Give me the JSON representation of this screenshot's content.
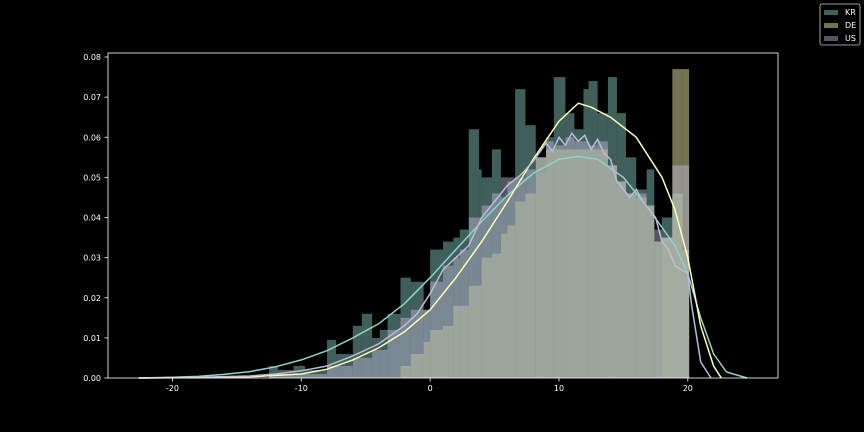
{
  "chart_data": {
    "type": "bar",
    "title": "",
    "xlabel": "",
    "ylabel": "",
    "xlim": [
      -25,
      27
    ],
    "ylim": [
      0,
      0.081
    ],
    "x_ticks": [
      -20,
      -10,
      0,
      10,
      20
    ],
    "y_ticks": [
      0.0,
      0.01,
      0.02,
      0.03,
      0.04,
      0.05,
      0.06,
      0.07,
      0.08
    ],
    "x_tick_labels": [
      "-20",
      "-10",
      "0",
      "10",
      "20"
    ],
    "y_tick_labels": [
      "0.00",
      "0.01",
      "0.02",
      "0.03",
      "0.04",
      "0.05",
      "0.06",
      "0.07",
      "0.08"
    ],
    "legend_position": "top-right",
    "series": [
      {
        "name": "KR",
        "color": "#8dd3c7",
        "hist": [
          [
            -12.5,
            -11.8,
            0.003
          ],
          [
            -11.8,
            -10.6,
            0.002
          ],
          [
            -10.6,
            -9.7,
            0.003
          ],
          [
            -9.7,
            -8.0,
            0.002
          ],
          [
            -8.0,
            -7.3,
            0.0095
          ],
          [
            -7.3,
            -6.0,
            0.006
          ],
          [
            -6.0,
            -5.3,
            0.013
          ],
          [
            -5.3,
            -4.5,
            0.016
          ],
          [
            -4.5,
            -3.9,
            0.01
          ],
          [
            -3.9,
            -3.3,
            0.012
          ],
          [
            -3.3,
            -2.3,
            0.016
          ],
          [
            -2.3,
            -1.5,
            0.025
          ],
          [
            -1.5,
            -0.5,
            0.024
          ],
          [
            -0.5,
            0.0,
            0.017
          ],
          [
            0.0,
            1.0,
            0.032
          ],
          [
            1.0,
            1.8,
            0.034
          ],
          [
            1.8,
            2.3,
            0.035
          ],
          [
            2.3,
            3.0,
            0.037
          ],
          [
            3.0,
            3.8,
            0.062
          ],
          [
            3.8,
            4.0,
            0.052
          ],
          [
            4.0,
            4.8,
            0.05
          ],
          [
            4.8,
            5.5,
            0.057
          ],
          [
            5.5,
            6.0,
            0.045
          ],
          [
            6.0,
            6.6,
            0.049
          ],
          [
            6.6,
            7.4,
            0.072
          ],
          [
            7.4,
            8.2,
            0.063
          ],
          [
            8.2,
            9.0,
            0.051
          ],
          [
            9.0,
            9.6,
            0.06
          ],
          [
            9.6,
            10.5,
            0.075
          ],
          [
            10.5,
            11.2,
            0.066
          ],
          [
            11.2,
            11.9,
            0.062
          ],
          [
            11.9,
            12.3,
            0.072
          ],
          [
            12.3,
            13.0,
            0.074
          ],
          [
            13.0,
            13.8,
            0.066
          ],
          [
            13.8,
            14.5,
            0.075
          ],
          [
            14.5,
            15.2,
            0.066
          ],
          [
            15.2,
            16.0,
            0.055
          ],
          [
            16.0,
            16.8,
            0.047
          ],
          [
            16.8,
            17.4,
            0.052
          ],
          [
            17.4,
            18.0,
            0.034
          ],
          [
            18.0,
            18.8,
            0.04
          ],
          [
            18.8,
            19.6,
            0.046
          ],
          [
            19.6,
            20.1,
            0.032
          ]
        ],
        "kde": [
          [
            -22.6,
            0.0
          ],
          [
            -20,
            0.0002
          ],
          [
            -18,
            0.0004
          ],
          [
            -16,
            0.0009
          ],
          [
            -14,
            0.0016
          ],
          [
            -12,
            0.0028
          ],
          [
            -10,
            0.0045
          ],
          [
            -8,
            0.0068
          ],
          [
            -6,
            0.01
          ],
          [
            -4,
            0.0135
          ],
          [
            -2,
            0.0185
          ],
          [
            0,
            0.025
          ],
          [
            2,
            0.032
          ],
          [
            4,
            0.039
          ],
          [
            6,
            0.0455
          ],
          [
            8,
            0.051
          ],
          [
            10,
            0.0545
          ],
          [
            11.5,
            0.0552
          ],
          [
            13,
            0.0545
          ],
          [
            15,
            0.05
          ],
          [
            17,
            0.042
          ],
          [
            19,
            0.033
          ],
          [
            20,
            0.026
          ],
          [
            21,
            0.015
          ],
          [
            22,
            0.006
          ],
          [
            23,
            0.0015
          ],
          [
            24.6,
            0.0
          ]
        ]
      },
      {
        "name": "DE",
        "color": "#ffffb3",
        "hist": [
          [
            18.0,
            18.8,
            0.035
          ],
          [
            18.8,
            19.6,
            0.077
          ],
          [
            19.6,
            20.1,
            0.077
          ]
        ],
        "kde": [
          [
            -22.6,
            0.0
          ],
          [
            -18,
            0.0001
          ],
          [
            -14,
            0.0003
          ],
          [
            -10,
            0.001
          ],
          [
            -8,
            0.0022
          ],
          [
            -6,
            0.0045
          ],
          [
            -4,
            0.0075
          ],
          [
            -2,
            0.0115
          ],
          [
            0,
            0.017
          ],
          [
            2,
            0.025
          ],
          [
            4,
            0.034
          ],
          [
            6,
            0.044
          ],
          [
            8,
            0.0545
          ],
          [
            10,
            0.064
          ],
          [
            11.5,
            0.0685
          ],
          [
            12.5,
            0.0675
          ],
          [
            14,
            0.065
          ],
          [
            16,
            0.06
          ],
          [
            18,
            0.05
          ],
          [
            19,
            0.042
          ],
          [
            20,
            0.03
          ],
          [
            21,
            0.013
          ],
          [
            22,
            0.003
          ],
          [
            22.6,
            0.0
          ]
        ]
      },
      {
        "name": "US",
        "color": "#bebada",
        "hist": [
          [
            -12.5,
            -8.0,
            0.001
          ],
          [
            -8.0,
            -6.0,
            0.003
          ],
          [
            -6.0,
            -4.5,
            0.005
          ],
          [
            -4.5,
            -3.3,
            0.007
          ],
          [
            -3.3,
            -2.3,
            0.012
          ],
          [
            -2.3,
            -1.5,
            0.015
          ],
          [
            -1.5,
            -0.5,
            0.017
          ],
          [
            -0.5,
            0.0,
            0.017
          ],
          [
            0.0,
            1.0,
            0.024
          ],
          [
            1.0,
            1.8,
            0.028
          ],
          [
            1.8,
            2.3,
            0.03
          ],
          [
            2.3,
            3.0,
            0.032
          ],
          [
            3.0,
            4.0,
            0.04
          ],
          [
            4.0,
            4.8,
            0.043
          ],
          [
            4.8,
            5.5,
            0.046
          ],
          [
            5.5,
            6.6,
            0.05
          ],
          [
            6.6,
            7.4,
            0.05
          ],
          [
            7.4,
            8.2,
            0.052
          ],
          [
            8.2,
            9.0,
            0.055
          ],
          [
            9.0,
            9.6,
            0.059
          ],
          [
            9.6,
            10.5,
            0.058
          ],
          [
            10.5,
            11.2,
            0.06
          ],
          [
            11.2,
            12.3,
            0.059
          ],
          [
            12.3,
            13.0,
            0.058
          ],
          [
            13.0,
            13.8,
            0.059
          ],
          [
            13.8,
            14.5,
            0.053
          ],
          [
            14.5,
            15.2,
            0.049
          ],
          [
            15.2,
            16.0,
            0.046
          ],
          [
            16.0,
            16.8,
            0.046
          ],
          [
            16.8,
            17.4,
            0.043
          ],
          [
            17.4,
            18.0,
            0.037
          ],
          [
            18.0,
            18.8,
            0.035
          ],
          [
            18.8,
            19.6,
            0.053
          ],
          [
            19.6,
            20.1,
            0.053
          ]
        ],
        "kde": [
          [
            -22.6,
            0.0
          ],
          [
            -18,
            0.0002
          ],
          [
            -14,
            0.0005
          ],
          [
            -12,
            0.001
          ],
          [
            -10,
            0.0018
          ],
          [
            -8,
            0.003
          ],
          [
            -6,
            0.0055
          ],
          [
            -4,
            0.0085
          ],
          [
            -2,
            0.013
          ],
          [
            -1,
            0.016
          ],
          [
            0,
            0.021
          ],
          [
            1,
            0.027
          ],
          [
            2,
            0.03
          ],
          [
            3,
            0.033
          ],
          [
            4,
            0.04
          ],
          [
            5,
            0.044
          ],
          [
            6,
            0.048
          ],
          [
            7,
            0.0505
          ],
          [
            8,
            0.054
          ],
          [
            9,
            0.0585
          ],
          [
            9.5,
            0.0565
          ],
          [
            10,
            0.06
          ],
          [
            10.5,
            0.058
          ],
          [
            11,
            0.061
          ],
          [
            11.5,
            0.059
          ],
          [
            12,
            0.0605
          ],
          [
            12.5,
            0.057
          ],
          [
            13,
            0.0595
          ],
          [
            13.5,
            0.056
          ],
          [
            14,
            0.0545
          ],
          [
            14.5,
            0.049
          ],
          [
            15,
            0.047
          ],
          [
            15.5,
            0.045
          ],
          [
            16,
            0.047
          ],
          [
            16.5,
            0.044
          ],
          [
            17,
            0.042
          ],
          [
            17.5,
            0.04
          ],
          [
            18,
            0.034
          ],
          [
            18.5,
            0.032
          ],
          [
            19,
            0.028
          ],
          [
            20,
            0.026
          ],
          [
            20.3,
            0.018
          ],
          [
            21,
            0.004
          ],
          [
            21.8,
            0.0
          ]
        ]
      }
    ],
    "overlap": {
      "color": "#a3ab9f",
      "hist": [
        [
          -2.3,
          -1.5,
          0.003
        ],
        [
          -1.5,
          -0.5,
          0.006
        ],
        [
          -0.5,
          0.0,
          0.009
        ],
        [
          0.0,
          1.0,
          0.012
        ],
        [
          1.0,
          1.8,
          0.013
        ],
        [
          1.8,
          2.3,
          0.018
        ],
        [
          2.3,
          3.0,
          0.018
        ],
        [
          3.0,
          3.8,
          0.023
        ],
        [
          3.8,
          4.0,
          0.023
        ],
        [
          4.0,
          4.8,
          0.03
        ],
        [
          4.8,
          5.5,
          0.031
        ],
        [
          5.5,
          6.0,
          0.036
        ],
        [
          6.0,
          6.6,
          0.038
        ],
        [
          6.6,
          7.4,
          0.044
        ],
        [
          7.4,
          8.2,
          0.046
        ],
        [
          8.2,
          9.0,
          0.055
        ],
        [
          9.0,
          9.6,
          0.057
        ],
        [
          9.6,
          10.5,
          0.057
        ],
        [
          10.5,
          11.2,
          0.057
        ],
        [
          11.2,
          11.9,
          0.057
        ],
        [
          11.9,
          12.3,
          0.057
        ],
        [
          12.3,
          13.0,
          0.057
        ],
        [
          13.0,
          13.8,
          0.057
        ],
        [
          13.8,
          14.5,
          0.053
        ],
        [
          14.5,
          15.2,
          0.049
        ],
        [
          15.2,
          16.0,
          0.046
        ],
        [
          16.0,
          16.8,
          0.045
        ],
        [
          16.8,
          17.4,
          0.043
        ],
        [
          17.4,
          18.0,
          0.034
        ],
        [
          18.0,
          18.8,
          0.034
        ],
        [
          18.8,
          19.6,
          0.045
        ],
        [
          19.6,
          20.1,
          0.031
        ]
      ]
    }
  }
}
